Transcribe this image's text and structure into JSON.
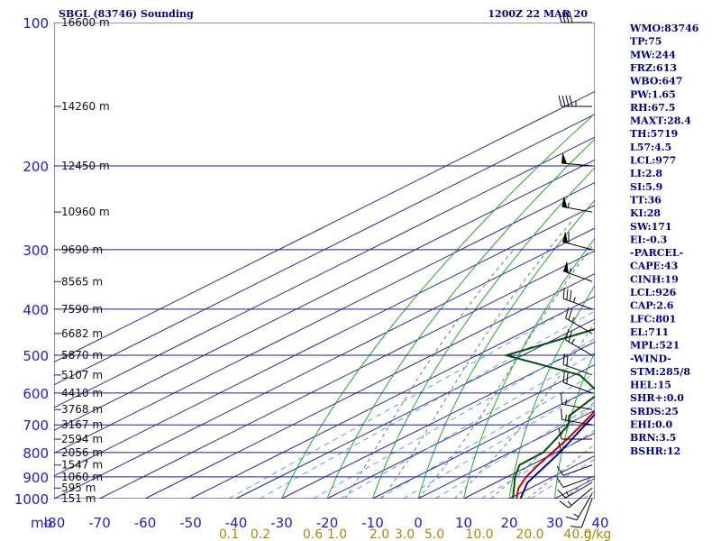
{
  "header": {
    "left": "SBGL (83746) Sounding",
    "right": "1200Z 22 MAR 20"
  },
  "chart_data": {
    "type": "line",
    "title": "SBGL (83746) Sounding",
    "subtitle": "1200Z 22 MAR 20",
    "xlabel": "",
    "ylabel": "mb",
    "xlim": [
      -80,
      40
    ],
    "ylim": [
      1000,
      100
    ],
    "y_scale": "log",
    "skew": "skew-T",
    "pressure_ticks": [
      100,
      200,
      300,
      400,
      500,
      600,
      700,
      800,
      900,
      1000
    ],
    "pressure_tick_labels": [
      "100",
      "200",
      "300",
      "400",
      "500",
      "600",
      "700",
      "800",
      "900",
      "1000"
    ],
    "temp_ticks": [
      -80,
      -70,
      -60,
      -50,
      -40,
      -30,
      -20,
      -10,
      0,
      10,
      20,
      30,
      40
    ],
    "temp_tick_labels": [
      "-80",
      "-70",
      "-60",
      "-50",
      "-40",
      "-30",
      "-20",
      "-10",
      "0",
      "10",
      "20",
      "30",
      "40"
    ],
    "axis_unit_label": "mb",
    "height_labels": [
      {
        "p": 100,
        "text": "16600 m"
      },
      {
        "p": 150,
        "text": "14260 m"
      },
      {
        "p": 200,
        "text": "12450 m"
      },
      {
        "p": 250,
        "text": "10960 m"
      },
      {
        "p": 300,
        "text": "9690 m"
      },
      {
        "p": 350,
        "text": "8565 m"
      },
      {
        "p": 400,
        "text": "7590 m"
      },
      {
        "p": 450,
        "text": "6682 m"
      },
      {
        "p": 500,
        "text": "5870 m"
      },
      {
        "p": 550,
        "text": "5107 m"
      },
      {
        "p": 600,
        "text": "4410 m"
      },
      {
        "p": 650,
        "text": "3768 m"
      },
      {
        "p": 700,
        "text": "3167 m"
      },
      {
        "p": 750,
        "text": "2594 m"
      },
      {
        "p": 800,
        "text": "2056 m"
      },
      {
        "p": 850,
        "text": "1547 m"
      },
      {
        "p": 900,
        "text": "1060 m"
      },
      {
        "p": 950,
        "text": "595 m"
      },
      {
        "p": 1000,
        "text": "151 m"
      }
    ],
    "mixing_ratio_labels": [
      "0.1",
      "0.2",
      "0.6",
      "1.0",
      "2.0",
      "3.0",
      "5.0",
      "10.0",
      "20.0",
      "40.0",
      "g/kg"
    ],
    "series": [
      {
        "name": "Temperature",
        "color": "#cc0000",
        "points": [
          {
            "p": 1000,
            "t": 21.6
          },
          {
            "p": 950,
            "t": 17.4
          },
          {
            "p": 900,
            "t": 14.2
          },
          {
            "p": 850,
            "t": 11.6
          },
          {
            "p": 800,
            "t": 9.2
          },
          {
            "p": 750,
            "t": 6.6
          },
          {
            "p": 700,
            "t": 3.5
          },
          {
            "p": 650,
            "t": 0.0
          },
          {
            "p": 600,
            "t": -3.2
          },
          {
            "p": 550,
            "t": -7.0
          },
          {
            "p": 500,
            "t": -9.9
          },
          {
            "p": 450,
            "t": -15.0
          },
          {
            "p": 400,
            "t": -20.6
          },
          {
            "p": 350,
            "t": -26.9
          },
          {
            "p": 300,
            "t": -34.0
          },
          {
            "p": 250,
            "t": -42.7
          },
          {
            "p": 200,
            "t": -54.3
          },
          {
            "p": 150,
            "t": -65.4
          },
          {
            "p": 100,
            "t": -77.2
          }
        ]
      },
      {
        "name": "Dewpoint",
        "color": "#005000",
        "points": [
          {
            "p": 1000,
            "t": 20.8
          },
          {
            "p": 950,
            "t": 16.4
          },
          {
            "p": 900,
            "t": 11.7
          },
          {
            "p": 850,
            "t": 7.5
          },
          {
            "p": 800,
            "t": 7.2
          },
          {
            "p": 750,
            "t": 4.1
          },
          {
            "p": 700,
            "t": 0.6
          },
          {
            "p": 670,
            "t": -3.2
          },
          {
            "p": 600,
            "t": -6.6
          },
          {
            "p": 550,
            "t": -18.8
          },
          {
            "p": 500,
            "t": -43.6
          },
          {
            "p": 400,
            "t": -29.5
          },
          {
            "p": 300,
            "t": -50.5
          },
          {
            "p": 250,
            "t": -63.5
          },
          {
            "p": 200,
            "t": -77.6
          },
          {
            "p": 170,
            "t": -89.5
          }
        ]
      },
      {
        "name": "Parcel",
        "color": "#0000aa",
        "points": [
          {
            "p": 1000,
            "t": 22.5
          },
          {
            "p": 926,
            "t": 17.0
          },
          {
            "p": 801,
            "t": 10.9
          },
          {
            "p": 700,
            "t": 4.3
          },
          {
            "p": 600,
            "t": -3.2
          },
          {
            "p": 500,
            "t": -12.2
          },
          {
            "p": 400,
            "t": -24.1
          },
          {
            "p": 300,
            "t": -40.2
          },
          {
            "p": 200,
            "t": -63.9
          },
          {
            "p": 150,
            "t": -80.5
          }
        ]
      }
    ],
    "wind_barbs": [
      {
        "p": 1000,
        "dir": 200,
        "spd": 10
      },
      {
        "p": 975,
        "dir": 210,
        "spd": 15
      },
      {
        "p": 950,
        "dir": 230,
        "spd": 15
      },
      {
        "p": 925,
        "dir": 240,
        "spd": 15
      },
      {
        "p": 900,
        "dir": 250,
        "spd": 10
      },
      {
        "p": 850,
        "dir": 250,
        "spd": 10
      },
      {
        "p": 800,
        "dir": 270,
        "spd": 10
      },
      {
        "p": 750,
        "dir": 270,
        "spd": 10
      },
      {
        "p": 700,
        "dir": 280,
        "spd": 15
      },
      {
        "p": 650,
        "dir": 280,
        "spd": 15
      },
      {
        "p": 600,
        "dir": 290,
        "spd": 20
      },
      {
        "p": 550,
        "dir": 290,
        "spd": 20
      },
      {
        "p": 500,
        "dir": 300,
        "spd": 25
      },
      {
        "p": 450,
        "dir": 300,
        "spd": 25
      },
      {
        "p": 400,
        "dir": 290,
        "spd": 35
      },
      {
        "p": 350,
        "dir": 290,
        "spd": 55
      },
      {
        "p": 300,
        "dir": 285,
        "spd": 60
      },
      {
        "p": 250,
        "dir": 280,
        "spd": 55
      },
      {
        "p": 200,
        "dir": 275,
        "spd": 50
      },
      {
        "p": 150,
        "dir": 270,
        "spd": 45
      },
      {
        "p": 100,
        "dir": 270,
        "spd": 40
      }
    ]
  },
  "indices": [
    "WMO:83746",
    "TP:75",
    "MW:244",
    "FRZ:613",
    "WBO:647",
    "PW:1.65",
    "RH:67.5",
    "MAXT:28.4",
    "TH:5719",
    "L57:4.5",
    "LCL:977",
    "LI:2.8",
    "SI:5.9",
    "TT:36",
    "KI:28",
    "SW:171",
    "EI:-0.3",
    "-PARCEL-",
    "CAPE:43",
    "CINH:19",
    "LCL:926",
    "CAP:2.6",
    "LFC:801",
    "EL:711",
    "MPL:521",
    "-WIND-",
    "STM:285/8",
    "HEL:15",
    "SHR+:0.0",
    "SRDS:25",
    "EHI:0.0",
    "BRN:3.5",
    "BSHR:12"
  ],
  "colors": {
    "isobar": "#1a1aa0",
    "isotherm": "#1a1aa0",
    "dry_adiabat": "#22aa22",
    "moist_adiabat": "#6b7f6b",
    "mixing_ratio": "#4da6e8",
    "mixing_label": "#a88a00"
  }
}
